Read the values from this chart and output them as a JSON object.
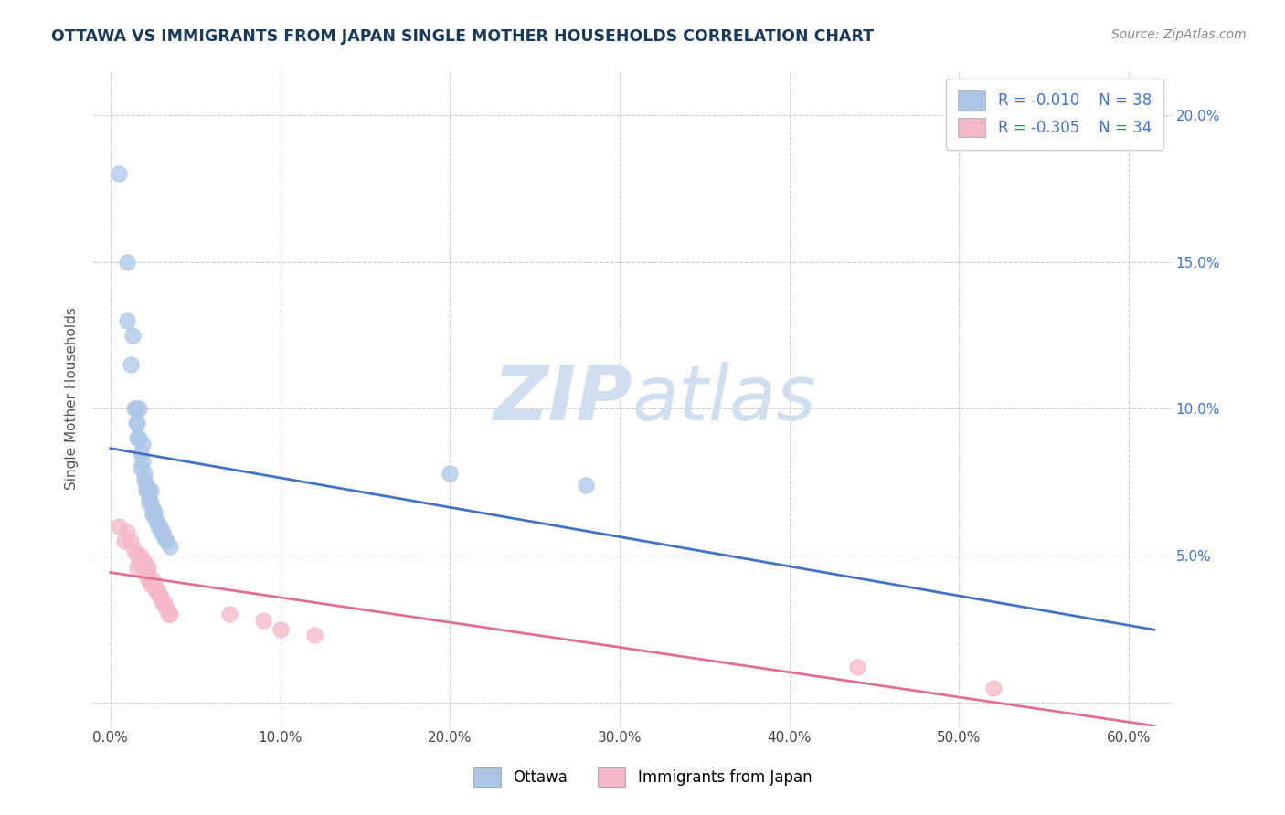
{
  "title": "OTTAWA VS IMMIGRANTS FROM JAPAN SINGLE MOTHER HOUSEHOLDS CORRELATION CHART",
  "source": "Source: ZipAtlas.com",
  "ylabel": "Single Mother Households",
  "series": [
    {
      "name": "Ottawa",
      "R": -0.01,
      "N": 38,
      "color": "#adc6e8",
      "line_color": "#4472c4",
      "x": [
        0.005,
        0.01,
        0.01,
        0.012,
        0.013,
        0.014,
        0.015,
        0.015,
        0.016,
        0.016,
        0.017,
        0.017,
        0.018,
        0.018,
        0.019,
        0.019,
        0.02,
        0.02,
        0.021,
        0.021,
        0.022,
        0.023,
        0.023,
        0.024,
        0.024,
        0.025,
        0.025,
        0.026,
        0.027,
        0.028,
        0.029,
        0.03,
        0.031,
        0.032,
        0.033,
        0.035,
        0.2,
        0.28
      ],
      "y": [
        0.18,
        0.15,
        0.13,
        0.115,
        0.125,
        0.1,
        0.1,
        0.095,
        0.095,
        0.09,
        0.1,
        0.09,
        0.085,
        0.08,
        0.088,
        0.082,
        0.078,
        0.076,
        0.074,
        0.072,
        0.072,
        0.07,
        0.068,
        0.072,
        0.068,
        0.066,
        0.064,
        0.065,
        0.062,
        0.06,
        0.06,
        0.058,
        0.058,
        0.056,
        0.055,
        0.053,
        0.078,
        0.074
      ]
    },
    {
      "name": "Immigrants from Japan",
      "R": -0.305,
      "N": 34,
      "color": "#f4b8c8",
      "line_color": "#e07090",
      "x": [
        0.005,
        0.008,
        0.01,
        0.012,
        0.014,
        0.016,
        0.016,
        0.018,
        0.018,
        0.019,
        0.02,
        0.02,
        0.021,
        0.022,
        0.022,
        0.023,
        0.024,
        0.025,
        0.026,
        0.027,
        0.028,
        0.029,
        0.03,
        0.031,
        0.032,
        0.033,
        0.034,
        0.035,
        0.07,
        0.09,
        0.1,
        0.12,
        0.44,
        0.52
      ],
      "y": [
        0.06,
        0.055,
        0.058,
        0.055,
        0.052,
        0.05,
        0.046,
        0.05,
        0.048,
        0.046,
        0.048,
        0.044,
        0.044,
        0.046,
        0.042,
        0.042,
        0.04,
        0.042,
        0.04,
        0.038,
        0.038,
        0.036,
        0.036,
        0.034,
        0.034,
        0.032,
        0.03,
        0.03,
        0.03,
        0.028,
        0.025,
        0.023,
        0.012,
        0.005
      ]
    }
  ],
  "xlim": [
    -0.01,
    0.625
  ],
  "ylim": [
    -0.008,
    0.215
  ],
  "xticks": [
    0.0,
    0.1,
    0.2,
    0.3,
    0.4,
    0.5,
    0.6
  ],
  "yticks": [
    0.0,
    0.05,
    0.1,
    0.15,
    0.2
  ],
  "ytick_labels_right": [
    "",
    "5.0%",
    "10.0%",
    "15.0%",
    "20.0%"
  ],
  "xtick_labels": [
    "0.0%",
    "10.0%",
    "20.0%",
    "30.0%",
    "40.0%",
    "50.0%",
    "60.0%"
  ],
  "grid_color": "#cccccc",
  "background_color": "#ffffff",
  "title_color": "#1a3a5c",
  "source_color": "#888888",
  "legend_box_colors": [
    "#adc6e8",
    "#f4b8c8"
  ],
  "legend_text_color": "#4472c4",
  "watermark_color": "#d0dff0"
}
